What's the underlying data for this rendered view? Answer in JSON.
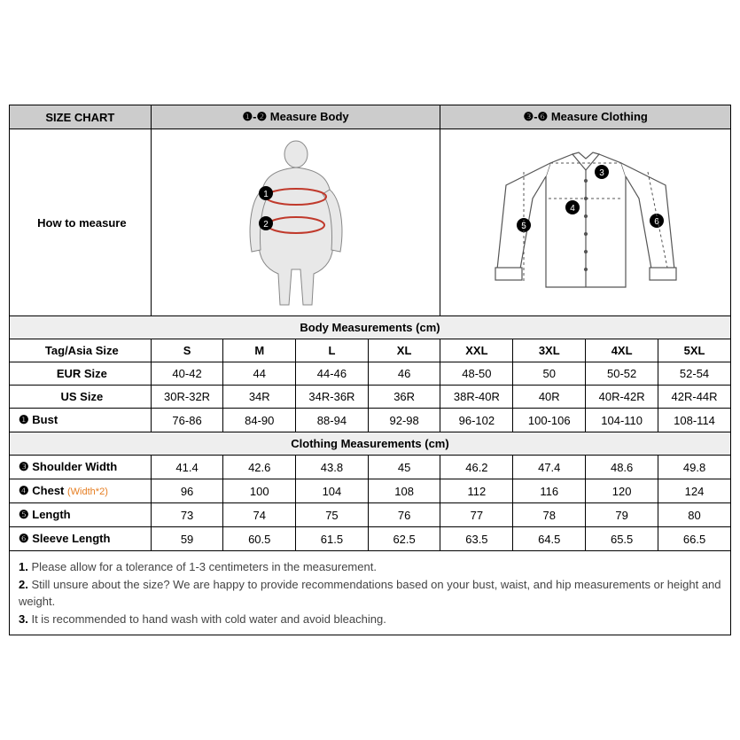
{
  "header": {
    "size_chart": "SIZE CHART",
    "measure_body_prefix": "❶-❷",
    "measure_body": "Measure Body",
    "measure_clothing_prefix": "❸-❻",
    "measure_clothing": "Measure Clothing",
    "how_to_measure": "How to measure"
  },
  "sections": {
    "body": "Body Measurements (cm)",
    "clothing": "Clothing Measurements  (cm)"
  },
  "sizes": [
    "S",
    "M",
    "L",
    "XL",
    "XXL",
    "3XL",
    "4XL",
    "5XL"
  ],
  "rows_body": [
    {
      "label": "Tag/Asia Size",
      "bold": true,
      "vals": [
        "S",
        "M",
        "L",
        "XL",
        "XXL",
        "3XL",
        "4XL",
        "5XL"
      ]
    },
    {
      "label": "EUR Size",
      "bold": true,
      "vals": [
        "40-42",
        "44",
        "44-46",
        "46",
        "48-50",
        "50",
        "50-52",
        "52-54"
      ]
    },
    {
      "label": "US Size",
      "bold": true,
      "vals": [
        "30R-32R",
        "34R",
        "34R-36R",
        "36R",
        "38R-40R",
        "40R",
        "40R-42R",
        "42R-44R"
      ]
    },
    {
      "label": "❶ Bust",
      "bold": true,
      "vals": [
        "76-86",
        "84-90",
        "88-94",
        "92-98",
        "96-102",
        "100-106",
        "104-110",
        "108-114"
      ]
    }
  ],
  "rows_clothing": [
    {
      "label": "❸ Shoulder Width",
      "extra": "",
      "vals": [
        "41.4",
        "42.6",
        "43.8",
        "45",
        "46.2",
        "47.4",
        "48.6",
        "49.8"
      ]
    },
    {
      "label": "❹ Chest",
      "extra": "(Width*2)",
      "vals": [
        "96",
        "100",
        "104",
        "108",
        "112",
        "116",
        "120",
        "124"
      ]
    },
    {
      "label": "❺ Length",
      "extra": "",
      "vals": [
        "73",
        "74",
        "75",
        "76",
        "77",
        "78",
        "79",
        "80"
      ]
    },
    {
      "label": "❻ Sleeve Length",
      "extra": "",
      "vals": [
        "59",
        "60.5",
        "61.5",
        "62.5",
        "63.5",
        "64.5",
        "65.5",
        "66.5"
      ]
    }
  ],
  "notes": [
    "Please allow for a tolerance of 1-3 centimeters in the measurement.",
    "Still unsure about the size? We are happy to provide recommendations based on your bust, waist, and hip measurements or height and weight.",
    "It is recommended to hand wash with cold water and avoid bleaching."
  ],
  "style": {
    "border_color": "#000000",
    "header_bg": "#cccccc",
    "section_bg": "#eeeeee",
    "text_color": "#000000",
    "orange": "#e67e22",
    "body_line": "#c0392b",
    "shirt_stroke": "#555555"
  }
}
